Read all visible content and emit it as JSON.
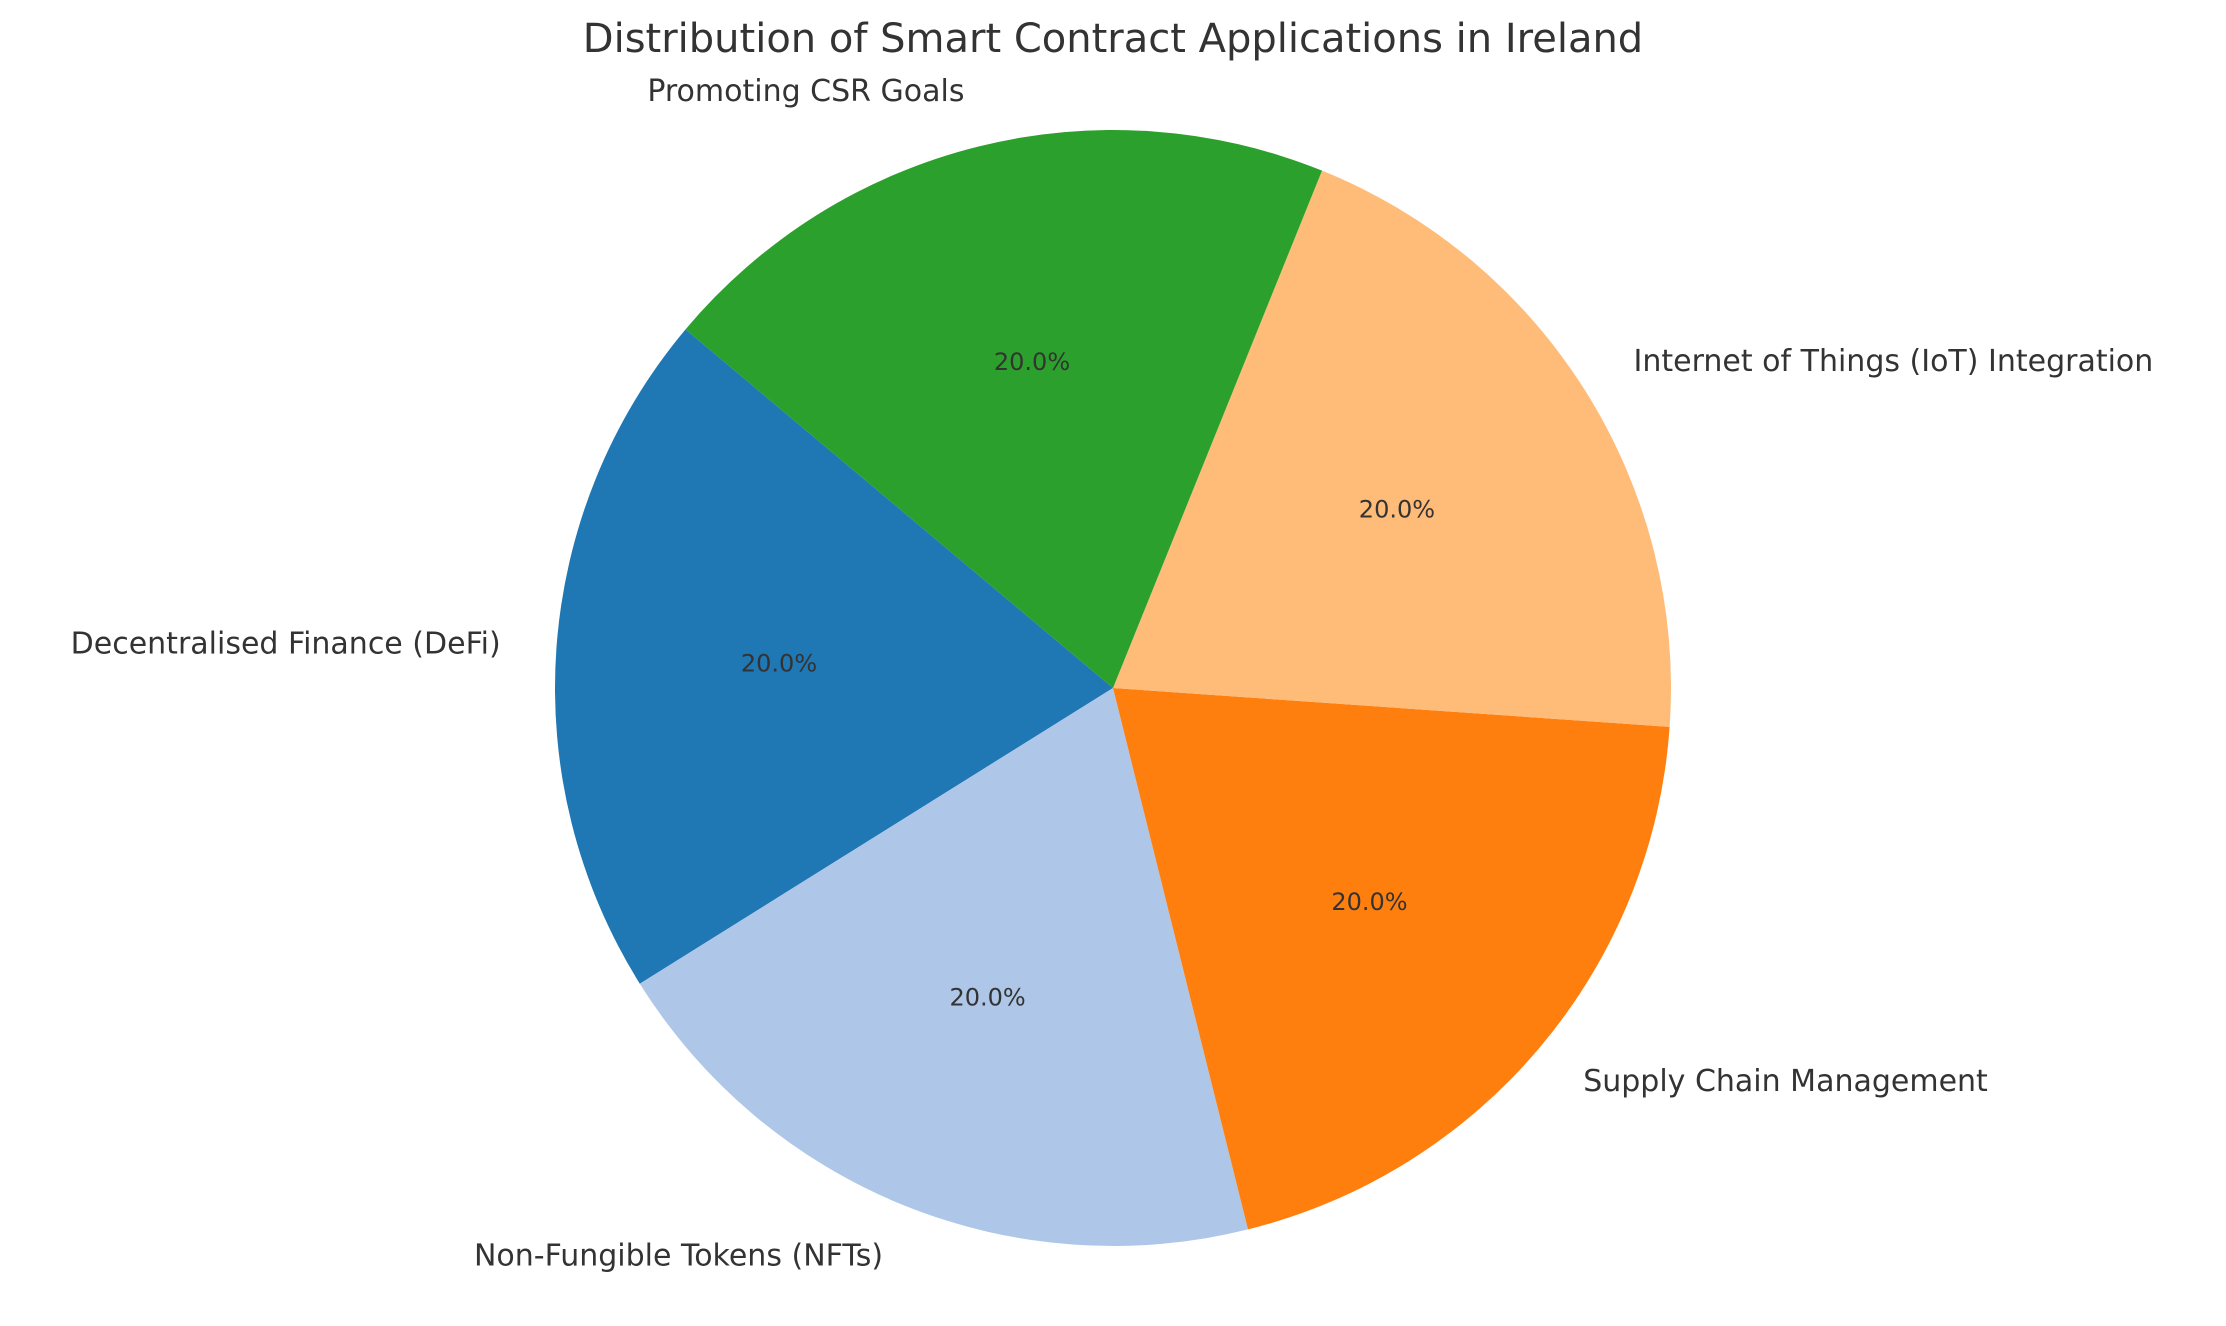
{
  "chart_data": {
    "type": "pie",
    "title": "Distribution of Smart Contract Applications in Ireland",
    "categories": [
      "Decentralised Finance (DeFi)",
      "Non-Fungible Tokens (NFTs)",
      "Supply Chain Management",
      "Internet of Things (IoT) Integration",
      "Promoting CSR Goals"
    ],
    "values": [
      20,
      20,
      20,
      20,
      20
    ],
    "percent_labels": [
      "20.0%",
      "20.0%",
      "20.0%",
      "20.0%",
      "20.0%"
    ],
    "colors": [
      "#1f77b4",
      "#aec7e8",
      "#ff7f0e",
      "#ffbb78",
      "#2ca02c"
    ],
    "start_angle_deg": 140,
    "direction": "counterclockwise",
    "legend": "none"
  }
}
